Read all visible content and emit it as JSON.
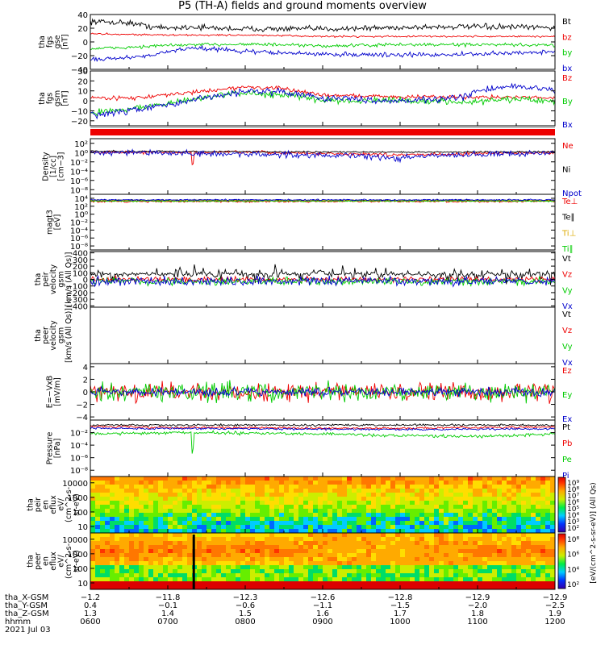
{
  "title": "P5 (TH-A) fields and ground moments overview",
  "colors": {
    "black": "#000000",
    "red": "#ee0000",
    "green": "#00cc00",
    "blue": "#0000cc"
  },
  "chart_data": [
    {
      "type": "line",
      "id": "fgs_gse",
      "ylabel": [
        "tha",
        "fgs",
        "gse",
        "[nT]"
      ],
      "ylim": [
        -40,
        40
      ],
      "yticks": [
        {
          "v": 40,
          "label": "40"
        },
        {
          "v": 20,
          "label": "20"
        },
        {
          "v": 0,
          "label": "0"
        },
        {
          "v": -20,
          "label": "−20"
        },
        {
          "v": -40,
          "label": "−40"
        }
      ],
      "series": [
        {
          "name": "Bt",
          "color": "#000000",
          "knots": [
            [
              6,
              30
            ],
            [
              6.5,
              28
            ],
            [
              6.8,
              22
            ],
            [
              7.0,
              20
            ],
            [
              7.3,
              22
            ],
            [
              7.6,
              20
            ],
            [
              8,
              19
            ],
            [
              9,
              19
            ],
            [
              10,
              21
            ],
            [
              10.5,
              22
            ],
            [
              11,
              22
            ],
            [
              12,
              21
            ]
          ],
          "noise": 2.5
        },
        {
          "name": "bz",
          "color": "#ee0000",
          "knots": [
            [
              6,
              12
            ],
            [
              7,
              10
            ],
            [
              8,
              10
            ],
            [
              9,
              8
            ],
            [
              10,
              8
            ],
            [
              11,
              8
            ],
            [
              12,
              8
            ]
          ],
          "noise": 0.8
        },
        {
          "name": "by",
          "color": "#00cc00",
          "knots": [
            [
              6,
              -10
            ],
            [
              6.5,
              -8
            ],
            [
              7,
              -5
            ],
            [
              7.5,
              -4
            ],
            [
              8,
              -3
            ],
            [
              9,
              -6
            ],
            [
              10,
              -4
            ],
            [
              11,
              -4
            ],
            [
              12,
              -5
            ]
          ],
          "noise": 1.5
        },
        {
          "name": "bx",
          "color": "#0000cc",
          "knots": [
            [
              6,
              -25
            ],
            [
              6.5,
              -23
            ],
            [
              7,
              -15
            ],
            [
              7.3,
              -8
            ],
            [
              7.8,
              -12
            ],
            [
              8,
              -14
            ],
            [
              9,
              -18
            ],
            [
              10,
              -19
            ],
            [
              11,
              -18
            ],
            [
              11.5,
              -16
            ],
            [
              12,
              -14
            ]
          ],
          "noise": 2
        }
      ]
    },
    {
      "type": "line",
      "id": "fgs_gsm",
      "ylabel": [
        "tha",
        "fgs",
        "gsm",
        "[nT]"
      ],
      "ylim": [
        -25,
        30
      ],
      "yticks": [
        {
          "v": 30,
          "label": "30"
        },
        {
          "v": 20,
          "label": "20"
        },
        {
          "v": 10,
          "label": "10"
        },
        {
          "v": 0,
          "label": "0"
        },
        {
          "v": -10,
          "label": "−10"
        },
        {
          "v": -20,
          "label": "−20"
        }
      ],
      "series": [
        {
          "name": "Bz",
          "color": "#ee0000",
          "knots": [
            [
              6,
              3
            ],
            [
              6.6,
              3
            ],
            [
              7,
              6
            ],
            [
              7.5,
              10
            ],
            [
              8,
              14
            ],
            [
              8.5,
              12
            ],
            [
              9,
              6
            ],
            [
              10,
              4
            ],
            [
              11,
              4
            ],
            [
              12,
              3
            ]
          ],
          "noise": 1.2
        },
        {
          "name": "By",
          "color": "#00cc00",
          "knots": [
            [
              6,
              -12
            ],
            [
              6.5,
              -8
            ],
            [
              7,
              -3
            ],
            [
              7.5,
              4
            ],
            [
              8,
              8
            ],
            [
              8.5,
              6
            ],
            [
              9,
              1
            ],
            [
              10,
              0
            ],
            [
              11,
              -1
            ],
            [
              11.5,
              2
            ],
            [
              12,
              -1
            ]
          ],
          "noise": 2
        },
        {
          "name": "Bx",
          "color": "#0000cc",
          "knots": [
            [
              6,
              -15
            ],
            [
              6.5,
              -10
            ],
            [
              7,
              -4
            ],
            [
              7.5,
              3
            ],
            [
              8,
              10
            ],
            [
              8.5,
              9
            ],
            [
              9,
              3
            ],
            [
              10,
              0
            ],
            [
              10.8,
              3
            ],
            [
              11,
              10
            ],
            [
              11.5,
              15
            ],
            [
              12,
              10
            ]
          ],
          "noise": 2
        }
      ]
    },
    {
      "type": "line",
      "id": "density",
      "log": true,
      "ylabel": [
        "Density",
        "[1/cc]",
        "[cm−3]"
      ],
      "ylim": [
        -9,
        3
      ],
      "yticks": [
        {
          "v": 2,
          "label": "10²"
        },
        {
          "v": 0,
          "label": "10⁰"
        },
        {
          "v": -2,
          "label": "10⁻²"
        },
        {
          "v": -4,
          "label": "10⁻⁴"
        },
        {
          "v": -6,
          "label": "10⁻⁶"
        },
        {
          "v": -8,
          "label": "10⁻⁸"
        }
      ],
      "series": [
        {
          "name": "Ne",
          "color": "#ee0000",
          "knots": [
            [
              6,
              0.1
            ],
            [
              7,
              0
            ],
            [
              7.3,
              0
            ],
            [
              7.32,
              -4
            ],
            [
              7.34,
              0
            ],
            [
              8,
              0.1
            ],
            [
              9,
              -0.2
            ],
            [
              10,
              -0.5
            ],
            [
              11,
              -0.2
            ],
            [
              12,
              0
            ]
          ],
          "noise": 0.2
        },
        {
          "name": "Ni",
          "color": "#000000",
          "knots": [
            [
              6,
              0.3
            ],
            [
              8,
              0.2
            ],
            [
              10,
              0.1
            ],
            [
              12,
              0.2
            ]
          ],
          "noise": 0.1
        },
        {
          "name": "Npot",
          "color": "#0000cc",
          "knots": [
            [
              6,
              0
            ],
            [
              9,
              -0.5
            ],
            [
              10,
              -1.2
            ],
            [
              10.3,
              -0.8
            ],
            [
              11,
              -0.4
            ],
            [
              12,
              0
            ]
          ],
          "noise": 0.4
        }
      ]
    },
    {
      "type": "line",
      "id": "temperature",
      "log": true,
      "ylabel": [
        "magt3",
        "[eV]"
      ],
      "ylim": [
        -9,
        5
      ],
      "yticks": [
        {
          "v": 4,
          "label": "10⁴"
        },
        {
          "v": 2,
          "label": "10²"
        },
        {
          "v": 0,
          "label": "10⁰"
        },
        {
          "v": -2,
          "label": "10⁻²"
        },
        {
          "v": -4,
          "label": "10⁻⁴"
        },
        {
          "v": -6,
          "label": "10⁻⁶"
        },
        {
          "v": -8,
          "label": "10⁻⁸"
        }
      ],
      "series": [
        {
          "name": "Te⊥",
          "color": "#ee0000",
          "knots": [
            [
              6,
              3.2
            ],
            [
              12,
              3.2
            ]
          ],
          "noise": 0.15
        },
        {
          "name": "Te∥",
          "color": "#000000",
          "knots": [
            [
              6,
              3.5
            ],
            [
              12,
              3.5
            ]
          ],
          "noise": 0.1
        },
        {
          "name": "Ti⊥",
          "color": "#ddaa00",
          "knots": [
            [
              6,
              3.4
            ],
            [
              12,
              3.4
            ]
          ],
          "noise": 0.1
        },
        {
          "name": "Ti∥",
          "color": "#00cc00",
          "knots": [
            [
              6,
              3.3
            ],
            [
              12,
              3.3
            ]
          ],
          "noise": 0.1
        },
        {
          "name": "",
          "color": "#0000cc",
          "knots": [
            [
              6,
              3.6
            ],
            [
              12,
              3.6
            ]
          ],
          "noise": 0.1
        }
      ]
    },
    {
      "type": "line",
      "id": "peir_velocity",
      "ylabel": [
        "tha",
        "peir",
        "velocity",
        "gsm",
        "[km/s (All Qs)]"
      ],
      "ylim": [
        -420,
        420
      ],
      "yticks": [
        {
          "v": 400,
          "label": "400"
        },
        {
          "v": 300,
          "label": "300"
        },
        {
          "v": 200,
          "label": "200"
        },
        {
          "v": 100,
          "label": "100"
        },
        {
          "v": 0,
          "label": "0"
        },
        {
          "v": -100,
          "label": "−100"
        },
        {
          "v": -200,
          "label": "−200"
        },
        {
          "v": -300,
          "label": "−300"
        },
        {
          "v": -400,
          "label": "−400"
        }
      ],
      "series": [
        {
          "name": "Vt",
          "color": "#000000",
          "knots": [
            [
              6,
              80
            ],
            [
              12,
              80
            ]
          ],
          "noise": 60
        },
        {
          "name": "Vz",
          "color": "#ee0000",
          "knots": [
            [
              6,
              0
            ],
            [
              12,
              0
            ]
          ],
          "noise": 25
        },
        {
          "name": "Vy",
          "color": "#00cc00",
          "knots": [
            [
              6,
              -30
            ],
            [
              12,
              -30
            ]
          ],
          "noise": 35
        },
        {
          "name": "Vx",
          "color": "#0000cc",
          "knots": [
            [
              6,
              -30
            ],
            [
              12,
              -30
            ]
          ],
          "noise": 40
        }
      ]
    },
    {
      "type": "line",
      "id": "peer_velocity",
      "ylabel": [
        "tha",
        "peer",
        "velocity",
        "gsm",
        "[km/s (All Qs)]"
      ],
      "ylim": [
        -400,
        400
      ],
      "yticks": [],
      "series": [
        {
          "name": "Vt",
          "color": "#000000",
          "knots": []
        },
        {
          "name": "Vz",
          "color": "#ee0000",
          "knots": []
        },
        {
          "name": "Vy",
          "color": "#00cc00",
          "knots": []
        },
        {
          "name": "Vx",
          "color": "#0000cc",
          "knots": []
        }
      ]
    },
    {
      "type": "line",
      "id": "efield",
      "ylabel": [
        "E=−VxB",
        "[mV/m]"
      ],
      "ylim": [
        -4.5,
        4.5
      ],
      "yticks": [
        {
          "v": 4,
          "label": "4"
        },
        {
          "v": 2,
          "label": "2"
        },
        {
          "v": 0,
          "label": "0"
        },
        {
          "v": -2,
          "label": "−2"
        },
        {
          "v": -4,
          "label": "−4"
        }
      ],
      "series": [
        {
          "name": "Ez",
          "color": "#ee0000",
          "knots": [
            [
              6,
              0
            ],
            [
              12,
              0
            ]
          ],
          "noise": 0.9
        },
        {
          "name": "Ey",
          "color": "#00cc00",
          "knots": [
            [
              6,
              0
            ],
            [
              12,
              0
            ]
          ],
          "noise": 0.9
        },
        {
          "name": "Ex",
          "color": "#0000cc",
          "knots": [
            [
              6,
              0
            ],
            [
              12,
              0
            ]
          ],
          "noise": 0.4
        }
      ]
    },
    {
      "type": "line",
      "id": "pressure",
      "log": true,
      "ylabel": [
        "Pressure",
        "[nPa]"
      ],
      "ylim": [
        -9,
        0
      ],
      "yticks": [
        {
          "v": -2,
          "label": "10⁻²"
        },
        {
          "v": -4,
          "label": "10⁻⁴"
        },
        {
          "v": -6,
          "label": "10⁻⁶"
        },
        {
          "v": -8,
          "label": "10⁻⁸"
        }
      ],
      "series": [
        {
          "name": "Pt",
          "color": "#000000",
          "knots": [
            [
              6,
              -0.8
            ],
            [
              12,
              -0.8
            ]
          ],
          "noise": 0.1
        },
        {
          "name": "Pb",
          "color": "#ee0000",
          "knots": [
            [
              6,
              -1
            ],
            [
              7,
              -1.2
            ],
            [
              8,
              -1.2
            ],
            [
              9,
              -1.3
            ],
            [
              10,
              -1.3
            ],
            [
              11,
              -1.2
            ],
            [
              12,
              -1.1
            ]
          ],
          "noise": 0.1
        },
        {
          "name": "Pe",
          "color": "#00cc00",
          "knots": [
            [
              6,
              -2.2
            ],
            [
              7.3,
              -2
            ],
            [
              7.32,
              -6.5
            ],
            [
              7.34,
              -2
            ],
            [
              9,
              -2.2
            ],
            [
              10,
              -2.5
            ],
            [
              11,
              -2.6
            ],
            [
              12,
              -2.2
            ]
          ],
          "noise": 0.15
        },
        {
          "name": "Pi",
          "color": "#0000cc",
          "knots": [
            [
              6,
              -1.3
            ],
            [
              10,
              -1.5
            ],
            [
              12,
              -1.4
            ]
          ],
          "noise": 0.1
        }
      ]
    },
    {
      "type": "heatmap",
      "id": "peir_eflux",
      "ylabel": [
        "tha",
        "peir",
        "en",
        "eflux",
        "eV/",
        "(cm^2-s-",
        "sr-eV)"
      ],
      "yticks": [
        {
          "v": 10000,
          "label": "10000"
        },
        {
          "v": 1000,
          "label": "1000"
        },
        {
          "v": 100,
          "label": "100"
        },
        {
          "v": 10,
          "label": "10"
        }
      ],
      "colorbar_label": "[eV/(cm^2-s-sr-eV)] (All Qs)",
      "colorbar_ticks": [
        "10⁹",
        "10⁸",
        "10⁷",
        "10⁶",
        "10⁵",
        "10⁴",
        "10³",
        "10²"
      ]
    },
    {
      "type": "heatmap",
      "id": "peer_eflux",
      "ylabel": [
        "tha",
        "peer",
        "en",
        "eflux",
        "eV/",
        "(cm^2-s-",
        "sr-eV)"
      ],
      "yticks": [
        {
          "v": 10000,
          "label": "10000"
        },
        {
          "v": 1000,
          "label": "1000"
        },
        {
          "v": 100,
          "label": "100"
        },
        {
          "v": 10,
          "label": "10"
        }
      ],
      "colorbar_label": "[eV/(cm^2-s-sr-eV)] (All Qs)",
      "colorbar_ticks": [
        "10⁸",
        "10⁶",
        "10⁴",
        "10²"
      ]
    }
  ],
  "x_axis": {
    "xlim_hours": [
      6,
      12
    ],
    "rows": [
      {
        "name": "tha_X-GSM",
        "values": [
          "−1.2",
          "−11.8",
          "−12.3",
          "−12.6",
          "−12.8",
          "−12.9",
          "−12.9"
        ]
      },
      {
        "name": "tha_Y-GSM",
        "values": [
          "0.4",
          "−0.1",
          "−0.6",
          "−1.1",
          "−1.5",
          "−2.0",
          "−2.5"
        ]
      },
      {
        "name": "tha_Z-GSM",
        "values": [
          "1.3",
          "1.4",
          "1.5",
          "1.6",
          "1.7",
          "1.8",
          "1.9"
        ]
      },
      {
        "name": "hhmm",
        "values": [
          "0600",
          "0700",
          "0800",
          "0900",
          "1000",
          "1100",
          "1200"
        ]
      }
    ],
    "date": "2021 Jul 03"
  }
}
